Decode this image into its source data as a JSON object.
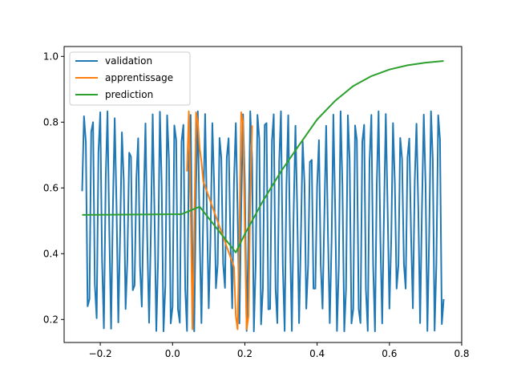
{
  "chart_data": {
    "type": "line",
    "title": "",
    "xlabel": "",
    "ylabel": "",
    "xlim": [
      -0.3,
      0.8
    ],
    "ylim": [
      0.13,
      1.03
    ],
    "grid": false,
    "legend_position": "top-left",
    "xticks": [
      {
        "value": -0.2,
        "label": "−0.2"
      },
      {
        "value": 0.0,
        "label": "0.0"
      },
      {
        "value": 0.2,
        "label": "0.2"
      },
      {
        "value": 0.4,
        "label": "0.4"
      },
      {
        "value": 0.6,
        "label": "0.6"
      },
      {
        "value": 0.8,
        "label": "0.8"
      }
    ],
    "yticks": [
      {
        "value": 0.2,
        "label": "0.2"
      },
      {
        "value": 0.4,
        "label": "0.4"
      },
      {
        "value": 0.6,
        "label": "0.6"
      },
      {
        "value": 0.8,
        "label": "0.8"
      },
      {
        "value": 1.0,
        "label": "1.0"
      }
    ],
    "series": [
      {
        "name": "validation",
        "color": "#1f77b4",
        "x": [
          -0.25,
          -0.245,
          -0.24,
          -0.235,
          -0.23,
          -0.225,
          -0.22,
          -0.215,
          -0.21,
          -0.205,
          -0.2,
          -0.195,
          -0.19,
          -0.185,
          -0.18,
          -0.175,
          -0.17,
          -0.165,
          -0.16,
          -0.155,
          -0.15,
          -0.145,
          -0.14,
          -0.135,
          -0.13,
          -0.125,
          -0.12,
          -0.115,
          -0.11,
          -0.105,
          -0.1,
          -0.095,
          -0.09,
          -0.085,
          -0.08,
          -0.075,
          -0.07,
          -0.065,
          -0.06,
          -0.055,
          -0.05,
          -0.045,
          -0.04,
          -0.035,
          -0.03,
          -0.025,
          -0.02,
          -0.015,
          -0.01,
          -0.005,
          0.0,
          0.005,
          0.01,
          0.015,
          0.02,
          0.025,
          0.03,
          0.035,
          0.04,
          0.045,
          0.05,
          0.055,
          0.06,
          0.065,
          0.07,
          0.075,
          0.08,
          0.085,
          0.09,
          0.095,
          0.1,
          0.105,
          0.11,
          0.115,
          0.12,
          0.125,
          0.13,
          0.135,
          0.14,
          0.145,
          0.15,
          0.155,
          0.16,
          0.165,
          0.17,
          0.175,
          0.18,
          0.185,
          0.19,
          0.195,
          0.2,
          0.205,
          0.21,
          0.215,
          0.22,
          0.225,
          0.23,
          0.235,
          0.24,
          0.245,
          0.25,
          0.255,
          0.26,
          0.265,
          0.27,
          0.275,
          0.28,
          0.285,
          0.29,
          0.295,
          0.3,
          0.305,
          0.31,
          0.315,
          0.32,
          0.325,
          0.33,
          0.335,
          0.34,
          0.345,
          0.35,
          0.355,
          0.36,
          0.365,
          0.37,
          0.375,
          0.38,
          0.385,
          0.39,
          0.395,
          0.4,
          0.405,
          0.41,
          0.415,
          0.42,
          0.425,
          0.43,
          0.435,
          0.44,
          0.445,
          0.45,
          0.455,
          0.46,
          0.465,
          0.47,
          0.475,
          0.48,
          0.485,
          0.49,
          0.495,
          0.5,
          0.505,
          0.51,
          0.515,
          0.52,
          0.525,
          0.53,
          0.535,
          0.54,
          0.545,
          0.55,
          0.555,
          0.56,
          0.565,
          0.57,
          0.575,
          0.58,
          0.585,
          0.59,
          0.595,
          0.6,
          0.605,
          0.61,
          0.615,
          0.62,
          0.625,
          0.63,
          0.635,
          0.64,
          0.645,
          0.65,
          0.655,
          0.66,
          0.665,
          0.67,
          0.675,
          0.68,
          0.685,
          0.69,
          0.695,
          0.7,
          0.705,
          0.71,
          0.715,
          0.72,
          0.725,
          0.73,
          0.735,
          0.74,
          0.745,
          0.75
        ],
        "y": [
          0.59,
          0.818,
          0.739,
          0.24,
          0.262,
          0.771,
          0.8,
          0.307,
          0.204,
          0.707,
          0.83,
          0.382,
          0.173,
          0.631,
          0.833,
          0.465,
          0.172,
          0.547,
          0.812,
          0.543,
          0.191,
          0.462,
          0.769,
          0.622,
          0.232,
          0.381,
          0.707,
          0.695,
          0.289,
          0.304,
          0.633,
          0.751,
          0.362,
          0.239,
          0.548,
          0.796,
          0.445,
          0.19,
          0.462,
          0.824,
          0.53,
          0.165,
          0.381,
          0.832,
          0.612,
          0.164,
          0.304,
          0.821,
          0.686,
          0.188,
          0.239,
          0.79,
          0.746,
          0.232,
          0.19,
          0.741,
          0.792,
          0.293,
          0.165,
          0.679,
          0.822,
          0.369,
          0.164,
          0.606,
          0.833,
          0.453,
          0.189,
          0.526,
          0.825,
          0.534,
          0.234,
          0.444,
          0.797,
          0.616,
          0.295,
          0.369,
          0.752,
          0.691,
          0.369,
          0.296,
          0.693,
          0.751,
          0.448,
          0.234,
          0.618,
          0.797,
          0.533,
          0.188,
          0.535,
          0.824,
          0.612,
          0.165,
          0.45,
          0.833,
          0.689,
          0.164,
          0.369,
          0.822,
          0.749,
          0.185,
          0.296,
          0.792,
          0.797,
          0.231,
          0.232,
          0.744,
          0.824,
          0.292,
          0.189,
          0.68,
          0.833,
          0.366,
          0.165,
          0.604,
          0.821,
          0.449,
          0.165,
          0.52,
          0.789,
          0.532,
          0.189,
          0.439,
          0.742,
          0.612,
          0.233,
          0.364,
          0.679,
          0.685,
          0.294,
          0.294,
          0.604,
          0.745,
          0.368,
          0.233,
          0.523,
          0.789,
          0.451,
          0.189,
          0.441,
          0.823,
          0.532,
          0.165,
          0.364,
          0.833,
          0.611,
          0.164,
          0.293,
          0.821,
          0.684,
          0.188,
          0.232,
          0.79,
          0.745,
          0.232,
          0.189,
          0.741,
          0.792,
          0.292,
          0.165,
          0.679,
          0.822,
          0.367,
          0.164,
          0.606,
          0.833,
          0.45,
          0.188,
          0.526,
          0.825,
          0.535,
          0.233,
          0.444,
          0.797,
          0.614,
          0.294,
          0.367,
          0.752,
          0.689,
          0.369,
          0.294,
          0.693,
          0.75,
          0.449,
          0.234,
          0.619,
          0.795,
          0.533,
          0.189,
          0.536,
          0.823,
          0.612,
          0.165,
          0.45,
          0.833,
          0.688,
          0.166,
          0.368,
          0.821,
          0.748,
          0.186,
          0.262
        ]
      },
      {
        "name": "apprentissage",
        "color": "#ff7f0e",
        "x": [
          0.04,
          0.045,
          0.05,
          0.055,
          0.06,
          0.065,
          0.07,
          0.075,
          0.08,
          0.085,
          0.17,
          0.175,
          0.18,
          0.185,
          0.19,
          0.195,
          0.2,
          0.205,
          0.21,
          0.215,
          0.22
        ],
        "y": [
          0.65,
          0.833,
          0.55,
          0.17,
          0.46,
          0.83,
          0.8,
          0.72,
          0.68,
          0.62,
          0.36,
          0.21,
          0.17,
          0.46,
          0.83,
          0.8,
          0.46,
          0.17,
          0.21,
          0.56,
          0.79
        ]
      },
      {
        "name": "prediction",
        "color": "#2ca02c",
        "x": [
          -0.25,
          0.0,
          0.025,
          0.075,
          0.175,
          0.2,
          0.25,
          0.3,
          0.35,
          0.4,
          0.45,
          0.5,
          0.55,
          0.6,
          0.65,
          0.7,
          0.75
        ],
        "y": [
          0.518,
          0.52,
          0.52,
          0.543,
          0.404,
          0.46,
          0.56,
          0.65,
          0.73,
          0.808,
          0.865,
          0.91,
          0.94,
          0.96,
          0.973,
          0.981,
          0.986
        ]
      }
    ]
  }
}
